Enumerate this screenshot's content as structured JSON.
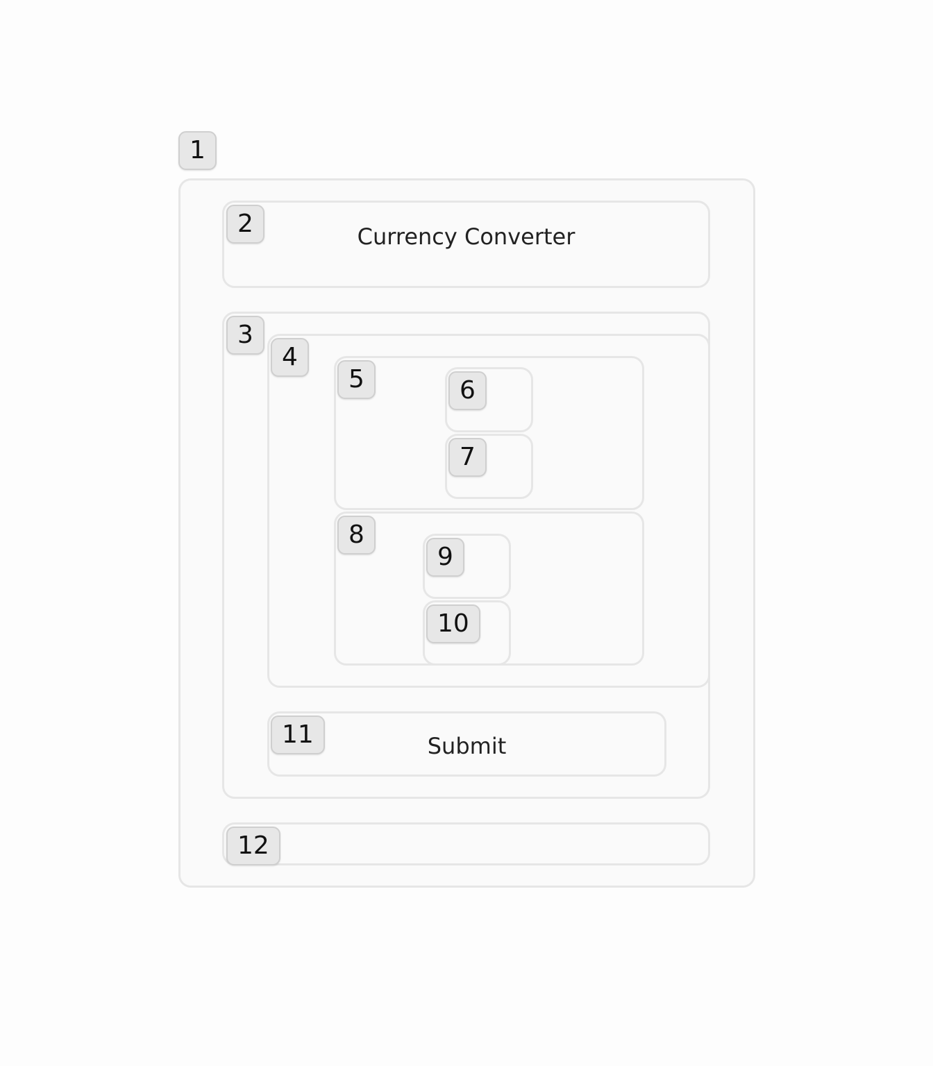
{
  "tags": [
    "1",
    "2",
    "3",
    "4",
    "5",
    "6",
    "7",
    "8",
    "9",
    "10",
    "11",
    "12"
  ],
  "header": {
    "title": "Currency Converter"
  },
  "form": {
    "submit_label": "Submit"
  }
}
